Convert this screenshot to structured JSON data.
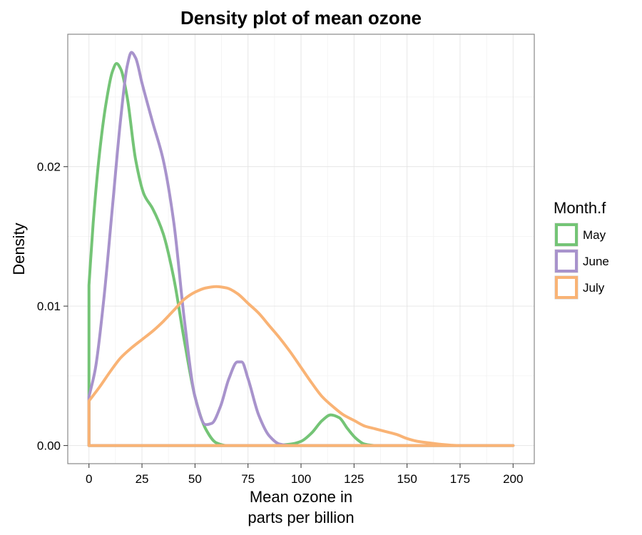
{
  "chart_data": {
    "type": "line",
    "title": "Density plot of mean ozone",
    "xlabel_lines": [
      "Mean ozone in",
      "parts per billion"
    ],
    "ylabel": "Density",
    "xlim": [
      -10,
      210
    ],
    "ylim": [
      -0.0013,
      0.0295
    ],
    "x_ticks": [
      0,
      25,
      50,
      75,
      100,
      125,
      150,
      175,
      200
    ],
    "x_tick_labels": [
      "0",
      "25",
      "50",
      "75",
      "100",
      "125",
      "150",
      "175",
      "200"
    ],
    "y_ticks": [
      0,
      0.01,
      0.02
    ],
    "y_tick_labels": [
      "0.00",
      "0.01",
      "0.02"
    ],
    "grid": true,
    "legend": {
      "title": "Month.f",
      "position": "right"
    },
    "series": [
      {
        "name": "May",
        "color": "#74c476",
        "x_max": 200,
        "points": [
          [
            0,
            0.0115
          ],
          [
            2,
            0.016
          ],
          [
            5,
            0.021
          ],
          [
            8,
            0.0245
          ],
          [
            11,
            0.0268
          ],
          [
            13,
            0.0274
          ],
          [
            15,
            0.027
          ],
          [
            18,
            0.025
          ],
          [
            22,
            0.0205
          ],
          [
            26,
            0.018
          ],
          [
            30,
            0.017
          ],
          [
            35,
            0.0152
          ],
          [
            40,
            0.012
          ],
          [
            45,
            0.0075
          ],
          [
            50,
            0.0035
          ],
          [
            55,
            0.0012
          ],
          [
            60,
            0.0002
          ],
          [
            65,
            0.0
          ],
          [
            85,
            0.0
          ],
          [
            95,
            0.0001
          ],
          [
            100,
            0.0003
          ],
          [
            105,
            0.0009
          ],
          [
            110,
            0.0018
          ],
          [
            114,
            0.0022
          ],
          [
            118,
            0.002
          ],
          [
            122,
            0.0012
          ],
          [
            126,
            0.0005
          ],
          [
            130,
            0.0001
          ],
          [
            135,
            0.0
          ],
          [
            200,
            0.0
          ]
        ]
      },
      {
        "name": "June",
        "color": "#a893cc",
        "x_max": 200,
        "points": [
          [
            0,
            0.0035
          ],
          [
            3,
            0.0055
          ],
          [
            7,
            0.0105
          ],
          [
            11,
            0.017
          ],
          [
            15,
            0.0235
          ],
          [
            18,
            0.0272
          ],
          [
            20,
            0.0282
          ],
          [
            22,
            0.0278
          ],
          [
            25,
            0.026
          ],
          [
            30,
            0.0232
          ],
          [
            35,
            0.0205
          ],
          [
            40,
            0.016
          ],
          [
            45,
            0.009
          ],
          [
            50,
            0.0035
          ],
          [
            55,
            0.0015
          ],
          [
            58,
            0.0016
          ],
          [
            62,
            0.0028
          ],
          [
            66,
            0.0048
          ],
          [
            70,
            0.006
          ],
          [
            72,
            0.006
          ],
          [
            75,
            0.0048
          ],
          [
            80,
            0.0022
          ],
          [
            85,
            0.0007
          ],
          [
            90,
            0.0001
          ],
          [
            95,
            0.0
          ],
          [
            200,
            0.0
          ]
        ]
      },
      {
        "name": "July",
        "color": "#f9b375",
        "x_max": 200,
        "points": [
          [
            0,
            0.0032
          ],
          [
            5,
            0.0042
          ],
          [
            10,
            0.0053
          ],
          [
            15,
            0.0063
          ],
          [
            20,
            0.007
          ],
          [
            25,
            0.0076
          ],
          [
            30,
            0.0082
          ],
          [
            35,
            0.0089
          ],
          [
            40,
            0.0097
          ],
          [
            45,
            0.0105
          ],
          [
            50,
            0.011
          ],
          [
            55,
            0.0113
          ],
          [
            60,
            0.0114
          ],
          [
            65,
            0.0113
          ],
          [
            70,
            0.0109
          ],
          [
            75,
            0.0102
          ],
          [
            80,
            0.0095
          ],
          [
            85,
            0.0086
          ],
          [
            90,
            0.0077
          ],
          [
            95,
            0.0067
          ],
          [
            100,
            0.0056
          ],
          [
            105,
            0.0045
          ],
          [
            110,
            0.0035
          ],
          [
            115,
            0.0028
          ],
          [
            120,
            0.0022
          ],
          [
            125,
            0.0018
          ],
          [
            130,
            0.0014
          ],
          [
            135,
            0.0012
          ],
          [
            140,
            0.001
          ],
          [
            145,
            0.0008
          ],
          [
            150,
            0.0005
          ],
          [
            155,
            0.0003
          ],
          [
            160,
            0.0002
          ],
          [
            165,
            0.0001
          ],
          [
            175,
            0.0
          ],
          [
            200,
            0.0
          ]
        ]
      }
    ]
  }
}
